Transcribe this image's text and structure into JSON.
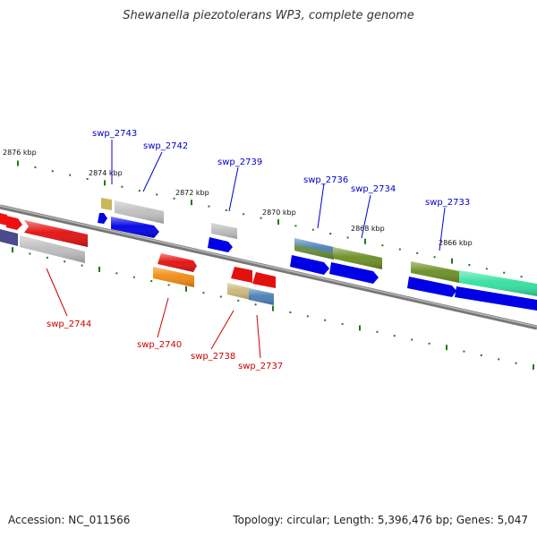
{
  "title": "Shewanella piezotolerans WP3, complete genome",
  "footer": {
    "accession": "Accession: NC_011566",
    "summary": "Topology: circular; Length: 5,396,476 bp; Genes: 5,047"
  },
  "colors": {
    "tick": "#1a7a1a",
    "backbone": "#8a8a8a",
    "label_top": "#0000cc",
    "label_bottom": "#cc0000",
    "axis_label": "#111111"
  },
  "position_labels": [
    "2876 kbp",
    "2874 kbp",
    "2872 kbp",
    "2870 kbp",
    "2868 kbp",
    "2866 kbp"
  ],
  "gene_labels": {
    "top": [
      "swp_2743",
      "swp_2742",
      "swp_2739",
      "swp_2736",
      "swp_2734",
      "swp_2733"
    ],
    "bottom": [
      "swp_2744",
      "swp_2740",
      "swp_2738",
      "swp_2737"
    ]
  }
}
